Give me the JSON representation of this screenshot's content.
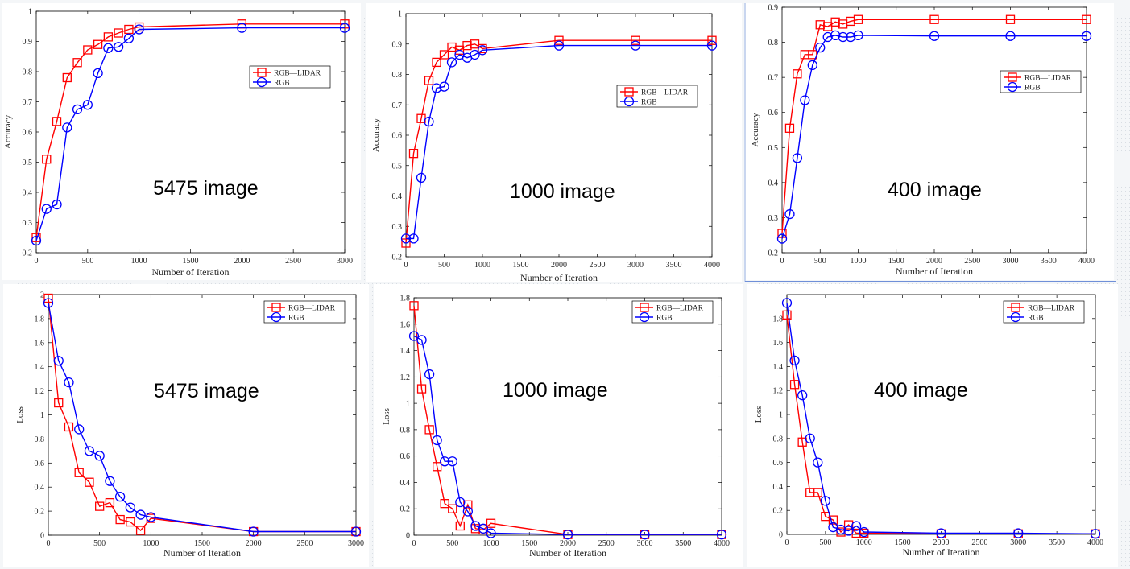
{
  "chart_data": [
    {
      "id": "acc5475",
      "type": "line",
      "annotation": "5475 image",
      "xlabel": "Number of Iteration",
      "ylabel": "Accuracy",
      "xlim": [
        0,
        3000
      ],
      "ylim": [
        0.2,
        1
      ],
      "xticks": [
        0,
        500,
        1000,
        1500,
        2000,
        2500,
        3000
      ],
      "xtick_labels": [
        "0",
        "500",
        "1000",
        "1500",
        "2000",
        "2500",
        "3000"
      ],
      "yticks": [
        0.2,
        0.3,
        0.4,
        0.5,
        0.6,
        0.7,
        0.8,
        0.9,
        1
      ],
      "ytick_labels": [
        "0.2",
        "0.3",
        "0.4",
        "0.5",
        "0.6",
        "0.7",
        "0.8",
        "0.9",
        "1"
      ],
      "legend": [
        "RGB—LIDAR",
        "RGB"
      ],
      "series": [
        {
          "name": "RGB—LIDAR",
          "color": "#ff0000",
          "marker": "square",
          "x": [
            0,
            100,
            200,
            300,
            400,
            500,
            600,
            700,
            800,
            900,
            1000,
            2000,
            3000
          ],
          "y": [
            0.25,
            0.51,
            0.635,
            0.78,
            0.83,
            0.872,
            0.89,
            0.915,
            0.928,
            0.94,
            0.948,
            0.958,
            0.958
          ]
        },
        {
          "name": "RGB",
          "color": "#0000ff",
          "marker": "circle",
          "x": [
            0,
            100,
            200,
            300,
            400,
            500,
            600,
            700,
            800,
            900,
            1000,
            2000,
            3000
          ],
          "y": [
            0.24,
            0.345,
            0.36,
            0.615,
            0.675,
            0.69,
            0.795,
            0.878,
            0.882,
            0.91,
            0.94,
            0.945,
            0.945
          ]
        }
      ]
    },
    {
      "id": "acc1000",
      "type": "line",
      "annotation": "1000 image",
      "xlabel": "Number of Iteration",
      "ylabel": "Accuracy",
      "xlim": [
        0,
        4000
      ],
      "ylim": [
        0.2,
        1
      ],
      "xticks": [
        0,
        500,
        1000,
        1500,
        2000,
        2500,
        3000,
        3500,
        4000
      ],
      "xtick_labels": [
        "0",
        "500",
        "1000",
        "1500",
        "2000",
        "2500",
        "3000",
        "3500",
        "4000"
      ],
      "yticks": [
        0.2,
        0.3,
        0.4,
        0.5,
        0.6,
        0.7,
        0.8,
        0.9,
        1
      ],
      "ytick_labels": [
        "0.2",
        "0.3",
        "0.4",
        "0.5",
        "0.6",
        "0.7",
        "0.8",
        "0.9",
        "1"
      ],
      "legend": [
        "RGB—LIDAR",
        "RGB"
      ],
      "series": [
        {
          "name": "RGB—LIDAR",
          "color": "#ff0000",
          "marker": "square",
          "x": [
            0,
            100,
            200,
            300,
            400,
            500,
            600,
            700,
            800,
            900,
            1000,
            2000,
            3000,
            4000
          ],
          "y": [
            0.245,
            0.54,
            0.655,
            0.78,
            0.84,
            0.865,
            0.89,
            0.88,
            0.895,
            0.9,
            0.885,
            0.912,
            0.912,
            0.912
          ]
        },
        {
          "name": "RGB",
          "color": "#0000ff",
          "marker": "circle",
          "x": [
            0,
            100,
            200,
            300,
            400,
            500,
            600,
            700,
            800,
            900,
            1000,
            2000,
            3000,
            4000
          ],
          "y": [
            0.26,
            0.26,
            0.46,
            0.645,
            0.755,
            0.76,
            0.84,
            0.865,
            0.855,
            0.865,
            0.88,
            0.895,
            0.895,
            0.895
          ]
        }
      ]
    },
    {
      "id": "acc400",
      "type": "line",
      "annotation": "400 image",
      "xlabel": "Number of Iteration",
      "ylabel": "Accuracy",
      "xlim": [
        0,
        4000
      ],
      "ylim": [
        0.2,
        0.9
      ],
      "xticks": [
        0,
        500,
        1000,
        1500,
        2000,
        2500,
        3000,
        3500,
        4000
      ],
      "xtick_labels": [
        "0",
        "500",
        "1000",
        "1500",
        "2000",
        "2500",
        "3000",
        "3500",
        "4000"
      ],
      "yticks": [
        0.2,
        0.3,
        0.4,
        0.5,
        0.6,
        0.7,
        0.8,
        0.9
      ],
      "ytick_labels": [
        "0.2",
        "0.3",
        "0.4",
        "0.5",
        "0.6",
        "0.7",
        "0.8",
        "0.9"
      ],
      "legend": [
        "RGB—LIDAR",
        "RGB"
      ],
      "series": [
        {
          "name": "RGB—LIDAR",
          "color": "#ff0000",
          "marker": "square",
          "x": [
            0,
            100,
            200,
            300,
            400,
            500,
            600,
            700,
            800,
            900,
            1000,
            2000,
            3000,
            4000
          ],
          "y": [
            0.255,
            0.555,
            0.71,
            0.765,
            0.765,
            0.85,
            0.845,
            0.858,
            0.852,
            0.86,
            0.865,
            0.865,
            0.865,
            0.865
          ]
        },
        {
          "name": "RGB",
          "color": "#0000ff",
          "marker": "circle",
          "x": [
            0,
            100,
            200,
            300,
            400,
            500,
            600,
            700,
            800,
            900,
            1000,
            2000,
            3000,
            4000
          ],
          "y": [
            0.24,
            0.31,
            0.47,
            0.635,
            0.735,
            0.785,
            0.815,
            0.82,
            0.815,
            0.815,
            0.82,
            0.818,
            0.818,
            0.818
          ]
        }
      ]
    },
    {
      "id": "loss5475",
      "type": "line",
      "annotation": "5475 image",
      "xlabel": "Number of Iteration",
      "ylabel": "Loss",
      "xlim": [
        0,
        3000
      ],
      "ylim": [
        0,
        2
      ],
      "xticks": [
        0,
        500,
        1000,
        1500,
        2000,
        2500,
        3000
      ],
      "xtick_labels": [
        "0",
        "500",
        "1000",
        "1500",
        "2000",
        "2500",
        "3000"
      ],
      "yticks": [
        0,
        0.2,
        0.4,
        0.6,
        0.8,
        1,
        1.2,
        1.4,
        1.6,
        1.8,
        2
      ],
      "ytick_labels": [
        "0",
        "0.2",
        "0.4",
        "0.6",
        "0.8",
        "1",
        "1.2",
        "1.4",
        "1.6",
        "1.8",
        "2"
      ],
      "legend": [
        "RGB—LIDAR",
        "RGB"
      ],
      "series": [
        {
          "name": "RGB—LIDAR",
          "color": "#ff0000",
          "marker": "square",
          "x": [
            0,
            100,
            200,
            300,
            400,
            500,
            600,
            700,
            800,
            900,
            1000,
            2000,
            3000
          ],
          "y": [
            1.97,
            1.1,
            0.9,
            0.52,
            0.44,
            0.24,
            0.27,
            0.13,
            0.11,
            0.04,
            0.14,
            0.03,
            0.03
          ]
        },
        {
          "name": "RGB",
          "color": "#0000ff",
          "marker": "circle",
          "x": [
            0,
            100,
            200,
            300,
            400,
            500,
            600,
            700,
            800,
            900,
            1000,
            2000,
            3000
          ],
          "y": [
            1.93,
            1.45,
            1.27,
            0.88,
            0.7,
            0.66,
            0.45,
            0.32,
            0.23,
            0.17,
            0.15,
            0.03,
            0.03
          ]
        }
      ]
    },
    {
      "id": "loss1000",
      "type": "line",
      "annotation": "1000 image",
      "xlabel": "Number of Iteration",
      "ylabel": "Loss",
      "xlim": [
        0,
        4000
      ],
      "ylim": [
        0,
        1.8
      ],
      "xticks": [
        0,
        500,
        1000,
        1500,
        2000,
        2500,
        3000,
        3500,
        4000
      ],
      "xtick_labels": [
        "0",
        "500",
        "1000",
        "1500",
        "2000",
        "2500",
        "3000",
        "3500",
        "4000"
      ],
      "yticks": [
        0,
        0.2,
        0.4,
        0.6,
        0.8,
        1,
        1.2,
        1.4,
        1.6,
        1.8
      ],
      "ytick_labels": [
        "0",
        "0.2",
        "0.4",
        "0.6",
        "0.8",
        "1",
        "1.2",
        "1.4",
        "1.6",
        "1.8"
      ],
      "legend": [
        "RGB—LIDAR",
        "RGB"
      ],
      "series": [
        {
          "name": "RGB—LIDAR",
          "color": "#ff0000",
          "marker": "square",
          "x": [
            0,
            100,
            200,
            300,
            400,
            500,
            600,
            700,
            800,
            900,
            1000,
            2000,
            3000,
            4000
          ],
          "y": [
            1.74,
            1.11,
            0.8,
            0.52,
            0.24,
            0.2,
            0.07,
            0.23,
            0.05,
            0.04,
            0.09,
            0.005,
            0.005,
            0.005
          ]
        },
        {
          "name": "RGB",
          "color": "#0000ff",
          "marker": "circle",
          "x": [
            0,
            100,
            200,
            300,
            400,
            500,
            600,
            700,
            800,
            900,
            1000,
            2000,
            3000,
            4000
          ],
          "y": [
            1.51,
            1.48,
            1.22,
            0.72,
            0.56,
            0.56,
            0.25,
            0.18,
            0.07,
            0.05,
            0.015,
            0.005,
            0.005,
            0.005
          ]
        }
      ]
    },
    {
      "id": "loss400",
      "type": "line",
      "annotation": "400 image",
      "xlabel": "Number of Iteration",
      "ylabel": "Loss",
      "xlim": [
        0,
        4000
      ],
      "ylim": [
        0,
        2
      ],
      "xticks": [
        0,
        500,
        1000,
        1500,
        2000,
        2500,
        3000,
        3500,
        4000
      ],
      "xtick_labels": [
        "0",
        "500",
        "1000",
        "1500",
        "2000",
        "2500",
        "3000",
        "3500",
        "4000"
      ],
      "yticks": [
        0,
        0.2,
        0.4,
        0.6,
        0.8,
        1,
        1.2,
        1.4,
        1.6,
        1.8
      ],
      "ytick_labels": [
        "0",
        "0.2",
        "0.4",
        "0.6",
        "0.8",
        "1",
        "1.2",
        "1.4",
        "1.6",
        "1.8"
      ],
      "legend": [
        "RGB—LIDAR",
        "RGB"
      ],
      "series": [
        {
          "name": "RGB—LIDAR",
          "color": "#ff0000",
          "marker": "square",
          "x": [
            0,
            100,
            200,
            300,
            400,
            500,
            600,
            700,
            800,
            900,
            1000,
            2000,
            3000,
            4000
          ],
          "y": [
            1.83,
            1.25,
            0.77,
            0.35,
            0.35,
            0.15,
            0.12,
            0.02,
            0.08,
            0.01,
            0.01,
            0.005,
            0.005,
            0.005
          ]
        },
        {
          "name": "RGB",
          "color": "#0000ff",
          "marker": "circle",
          "x": [
            0,
            100,
            200,
            300,
            400,
            500,
            600,
            700,
            800,
            900,
            1000,
            2000,
            3000,
            4000
          ],
          "y": [
            1.93,
            1.45,
            1.16,
            0.8,
            0.6,
            0.28,
            0.06,
            0.04,
            0.03,
            0.07,
            0.02,
            0.01,
            0.01,
            0.005
          ]
        }
      ]
    }
  ]
}
